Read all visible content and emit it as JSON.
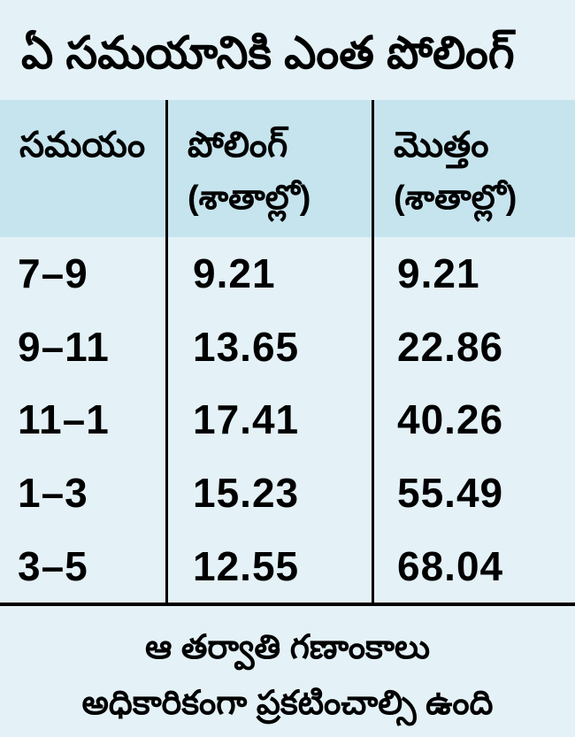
{
  "colors": {
    "page_background": "#e4f2f7",
    "header_background": "#c6e4ee",
    "text": "#000000",
    "rule": "#000000"
  },
  "title": "ఏ సమయానికి ఎంత పోలింగ్",
  "table": {
    "header": {
      "col1": {
        "label": "సమయం",
        "sublabel": ""
      },
      "col2": {
        "label": "పోలింగ్",
        "sublabel": "(శాతాల్లో)"
      },
      "col3": {
        "label": "మొత్తం",
        "sublabel": "(శాతాల్లో)"
      }
    },
    "rows": [
      {
        "time": "7–9",
        "polling": "9.21",
        "total": "9.21"
      },
      {
        "time": "9–11",
        "polling": "13.65",
        "total": "22.86"
      },
      {
        "time": "11–1",
        "polling": "17.41",
        "total": "40.26"
      },
      {
        "time": "1–3",
        "polling": "15.23",
        "total": "55.49"
      },
      {
        "time": "3–5",
        "polling": "12.55",
        "total": "68.04"
      }
    ]
  },
  "footer": {
    "line1": "ఆ తర్వాతి గణాంకాలు",
    "line2": "అధికారికంగా ప్రకటించాల్సి ఉంది"
  },
  "chart_data": {
    "type": "table",
    "title": "ఏ సమయానికి ఎంత పోలింగ్",
    "columns": [
      "సమయం",
      "పోలింగ్ (శాతాల్లో)",
      "మొత్తం (శాతాల్లో)"
    ],
    "rows": [
      [
        "7–9",
        9.21,
        9.21
      ],
      [
        "9–11",
        13.65,
        22.86
      ],
      [
        "11–1",
        17.41,
        40.26
      ],
      [
        "1–3",
        15.23,
        55.49
      ],
      [
        "3–5",
        12.55,
        68.04
      ]
    ],
    "note": "ఆ తర్వాతి గణాంకాలు అధికారికంగా ప్రకటించాల్సి ఉంది"
  }
}
